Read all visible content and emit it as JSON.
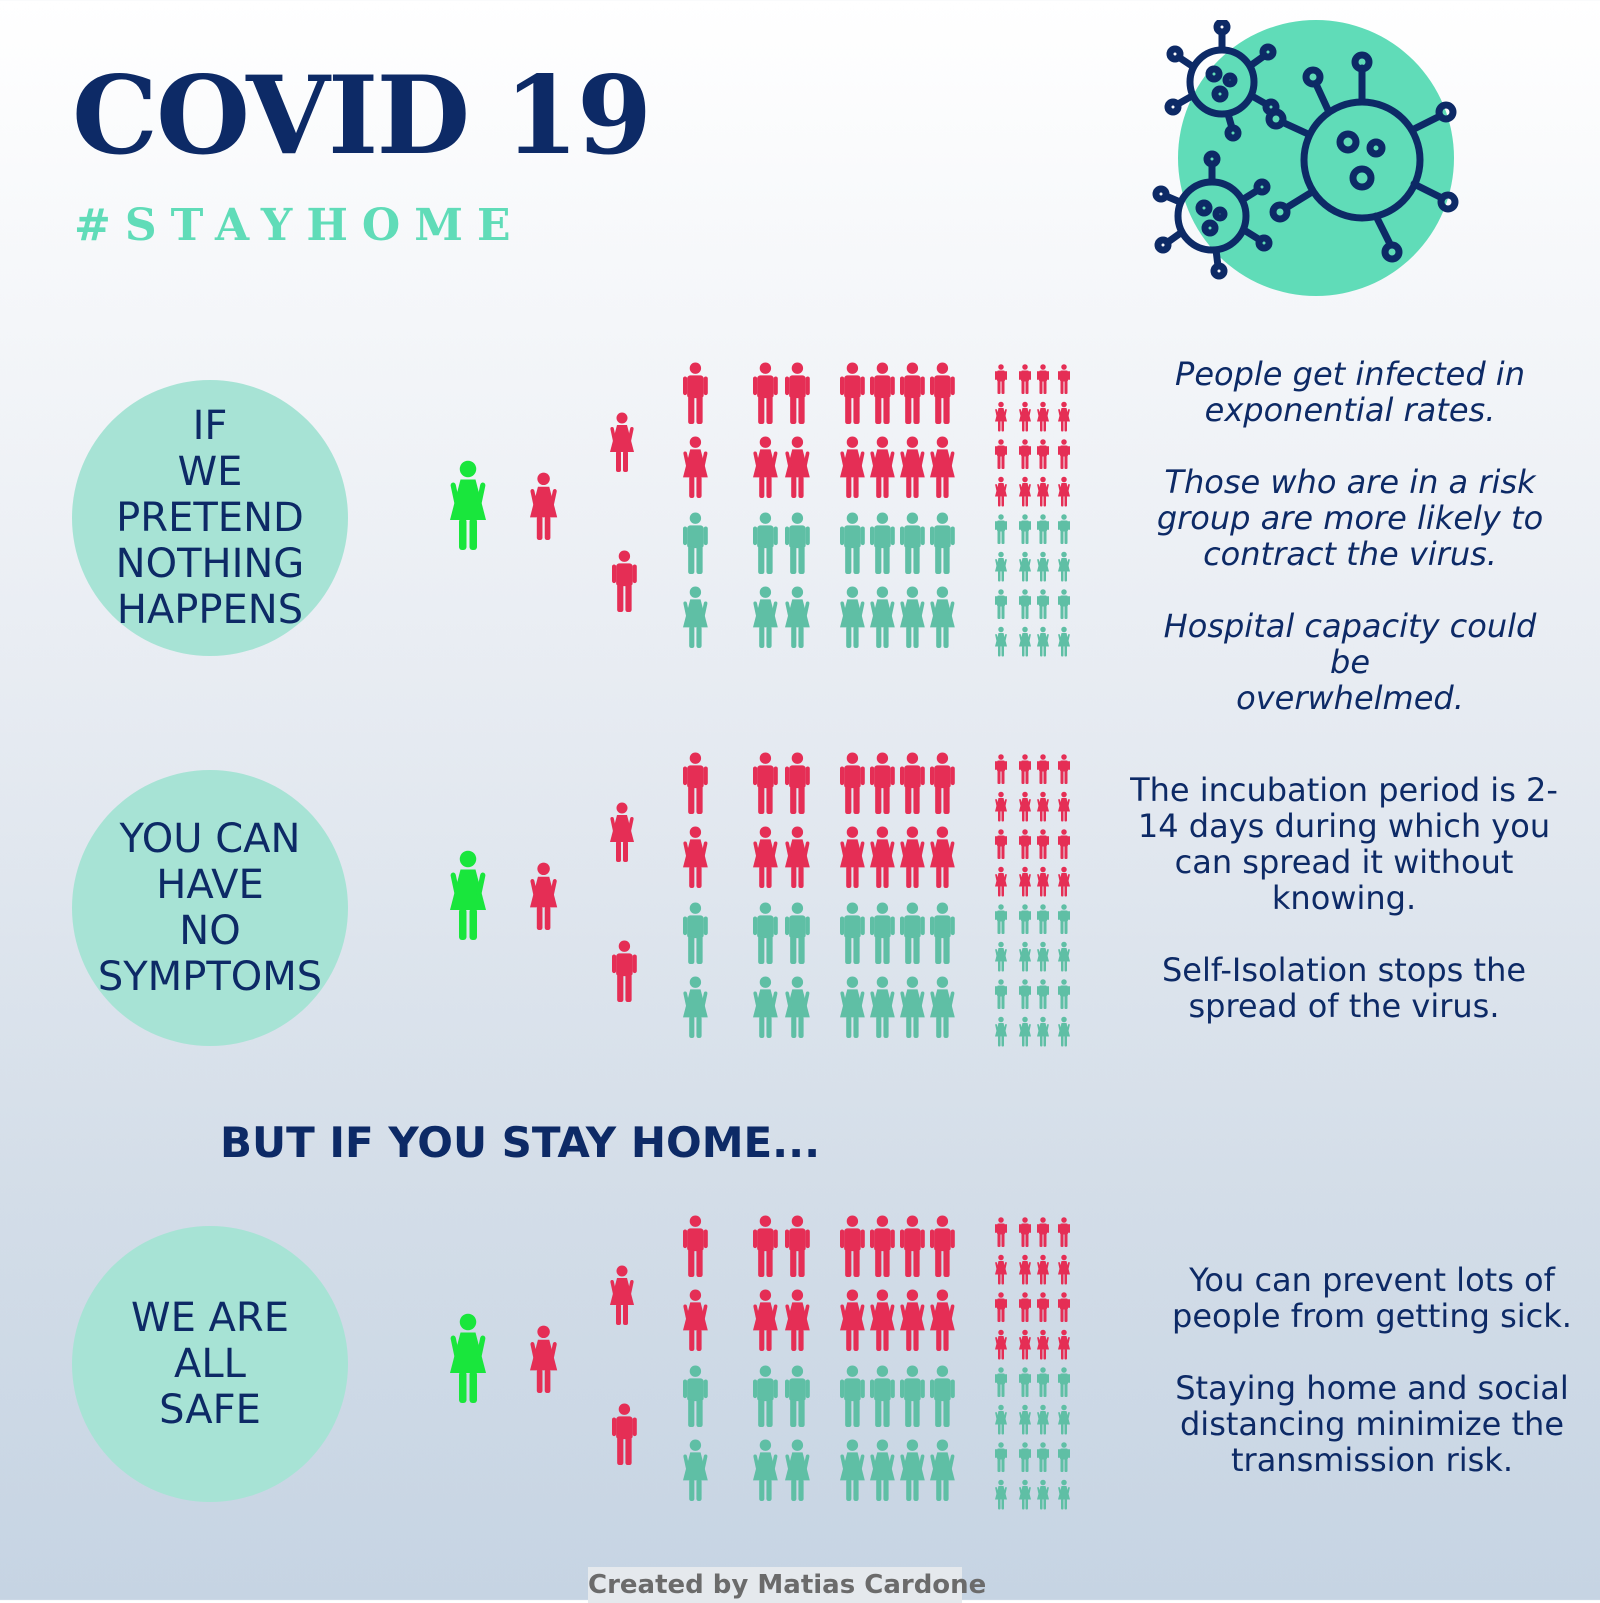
{
  "header": {
    "title": "COVID 19",
    "hashtag": "#STAYHOME",
    "virus_icon": "virus-cluster-icon"
  },
  "colors": {
    "navy": "#0d2a66",
    "mint": "#60dcb8",
    "bubble": "#a7e3d5",
    "infected": "#e52e55",
    "healthy": "#5fbfa5",
    "patient_zero": "#19e63c"
  },
  "sections": [
    {
      "bubble_text": "IF\nWE\nPRETEND\nNOTHING\nHAPPENS",
      "description": "People get infected in\nexponential rates.\n\nThose who are in a risk\ngroup are more likely to\ncontract the virus.\n\nHospital capacity could be\noverwhelmed."
    },
    {
      "bubble_text": "YOU CAN\nHAVE\nNO\nSYMPTOMS",
      "description": "The incubation period is 2-\n14 days during which you\ncan spread it without\nknowing.\n\nSelf-Isolation stops the\nspread of the virus."
    },
    {
      "bubble_text": "WE ARE\nALL\nSAFE",
      "description": "You can prevent lots of\npeople from getting sick.\n\nStaying home and social\ndistancing minimize the\ntransmission risk."
    }
  ],
  "stay_home_heading": "BUT IF YOU STAY HOME...",
  "credit": "Created by Matias Cardone"
}
